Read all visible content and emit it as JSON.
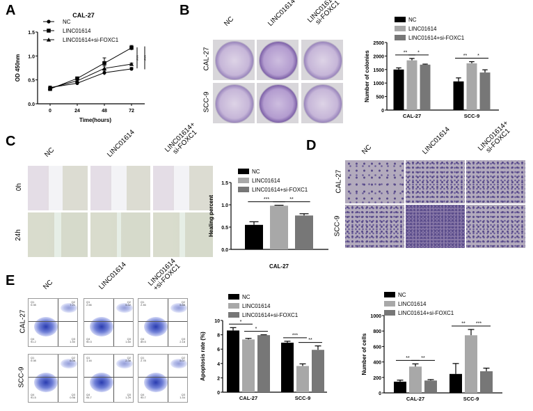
{
  "panels": {
    "A": "A",
    "B": "B",
    "C": "C",
    "D": "D",
    "E": "E"
  },
  "conditions": [
    "NC",
    "LINC01614",
    "LINC01614+\nsi-FOXC1"
  ],
  "conditions_flow": [
    "NC",
    "LINC01614",
    "LINC01614\n+si-FOXC1"
  ],
  "cell_lines": [
    "CAL-27",
    "SCC-9"
  ],
  "time_rows": [
    "0h",
    "24h"
  ],
  "colors": {
    "NC": "#000000",
    "LINC01614": "#a8a8a8",
    "LINC01614+si-FOXC1": "#777777"
  },
  "flow_quadrants": {
    "labels": [
      "Q1",
      "Q2",
      "Q3",
      "Q4"
    ],
    "CAL-27": [
      {
        "Q1": "0.08",
        "Q2": "7.21",
        "Q3": "1.50",
        "Q4": "91.2"
      },
      {
        "Q1": "2.66",
        "Q2": "5.42",
        "Q3": "1.60",
        "Q4": "90.3"
      },
      {
        "Q1": "2.46",
        "Q2": "5.88",
        "Q3": "2.18",
        "Q4": "89.5"
      }
    ],
    "SCC-9": [
      {
        "Q1": "0.08",
        "Q2": "6.08",
        "Q3": "0.98",
        "Q4": "91.5"
      },
      {
        "Q1": "1.16",
        "Q2": "2.38",
        "Q3": "1.29",
        "Q4": "94.7"
      },
      {
        "Q1": "2.78",
        "Q2": "5.07",
        "Q3": "1.44",
        "Q4": "90.7"
      }
    ]
  },
  "chart_data": [
    {
      "id": "A",
      "type": "line",
      "title": "CAL-27",
      "xlabel": "Time(hours)",
      "ylabel": "OD 450nm",
      "x": [
        0,
        24,
        48,
        72
      ],
      "xticks": [
        "0",
        "24",
        "48",
        "72"
      ],
      "ylim": [
        0,
        1.5
      ],
      "yticks": [
        "0.0",
        "0.5",
        "1.0",
        "1.5"
      ],
      "legend": "top-left",
      "series": [
        {
          "name": "NC",
          "marker": "circle",
          "values": [
            0.34,
            0.43,
            0.65,
            0.73
          ],
          "err": [
            0.03,
            0.02,
            0.05,
            0.03
          ]
        },
        {
          "name": "LINC01614",
          "marker": "square",
          "values": [
            0.31,
            0.53,
            0.85,
            1.17
          ],
          "err": [
            0.03,
            0.03,
            0.11,
            0.05
          ]
        },
        {
          "name": "LINC01614+si-FOXC1",
          "marker": "triangle",
          "values": [
            0.33,
            0.48,
            0.74,
            0.83
          ],
          "err": [
            0.03,
            0.02,
            0.05,
            0.02
          ]
        }
      ],
      "annotations": [
        "***",
        "***"
      ]
    },
    {
      "id": "B",
      "type": "bar",
      "ylabel": "Number of colonies",
      "categories": [
        "CAL-27",
        "SCC-9"
      ],
      "ylim": [
        0,
        2500
      ],
      "yticks": [
        "0",
        "500",
        "1000",
        "1500",
        "2000",
        "2500"
      ],
      "legend": "top-left",
      "series": [
        {
          "name": "NC",
          "values": [
            1500,
            1060
          ],
          "err": [
            60,
            130
          ]
        },
        {
          "name": "LINC01614",
          "values": [
            1840,
            1730
          ],
          "err": [
            70,
            60
          ]
        },
        {
          "name": "LINC01614+si-FOXC1",
          "values": [
            1680,
            1390
          ],
          "err": [
            20,
            100
          ]
        }
      ],
      "significance": [
        [
          "**",
          "*"
        ],
        [
          "**",
          "*"
        ]
      ]
    },
    {
      "id": "C",
      "type": "bar",
      "ylabel": "Healing percent",
      "xlabel": "CAL-27",
      "categories": [
        ""
      ],
      "ylim": [
        0,
        1.5
      ],
      "yticks": [
        "0.0",
        "0.5",
        "1.0",
        "1.5"
      ],
      "legend": "top-left",
      "series": [
        {
          "name": "NC",
          "values": [
            0.55
          ],
          "err": [
            0.07
          ]
        },
        {
          "name": "LINC01614",
          "values": [
            0.98
          ],
          "err": [
            0.01
          ]
        },
        {
          "name": "LINC01614+si-FOXC1",
          "values": [
            0.76
          ],
          "err": [
            0.04
          ]
        }
      ],
      "significance": [
        [
          "***",
          "**"
        ]
      ]
    },
    {
      "id": "E1",
      "type": "bar",
      "ylabel": "Apoptosis rate (%)",
      "categories": [
        "CAL-27",
        "SCC-9"
      ],
      "ylim": [
        0,
        10
      ],
      "yticks": [
        "0",
        "2",
        "4",
        "6",
        "8",
        "10"
      ],
      "legend": "top-left",
      "series": [
        {
          "name": "NC",
          "values": [
            8.6,
            6.9
          ],
          "err": [
            0.4,
            0.2
          ]
        },
        {
          "name": "LINC01614",
          "values": [
            7.35,
            3.65
          ],
          "err": [
            0.15,
            0.3
          ]
        },
        {
          "name": "LINC01614+si-FOXC1",
          "values": [
            7.95,
            5.9
          ],
          "err": [
            0.05,
            0.55
          ]
        }
      ],
      "significance": [
        [
          "*",
          "*"
        ],
        [
          "***",
          "**"
        ]
      ]
    },
    {
      "id": "E2",
      "type": "bar",
      "ylabel": "Number of cells",
      "categories": [
        "CAL-27",
        "SCC-9"
      ],
      "ylim": [
        0,
        1000
      ],
      "yticks": [
        "0",
        "200",
        "400",
        "600",
        "800",
        "1000"
      ],
      "legend": "top-left",
      "series": [
        {
          "name": "NC",
          "values": [
            145,
            245
          ],
          "err": [
            20,
            135
          ]
        },
        {
          "name": "LINC01614",
          "values": [
            340,
            745
          ],
          "err": [
            35,
            75
          ]
        },
        {
          "name": "LINC01614+si-FOXC1",
          "values": [
            160,
            280
          ],
          "err": [
            12,
            40
          ]
        }
      ],
      "significance": [
        [
          "**",
          "**"
        ],
        [
          "**",
          "***"
        ]
      ]
    }
  ]
}
